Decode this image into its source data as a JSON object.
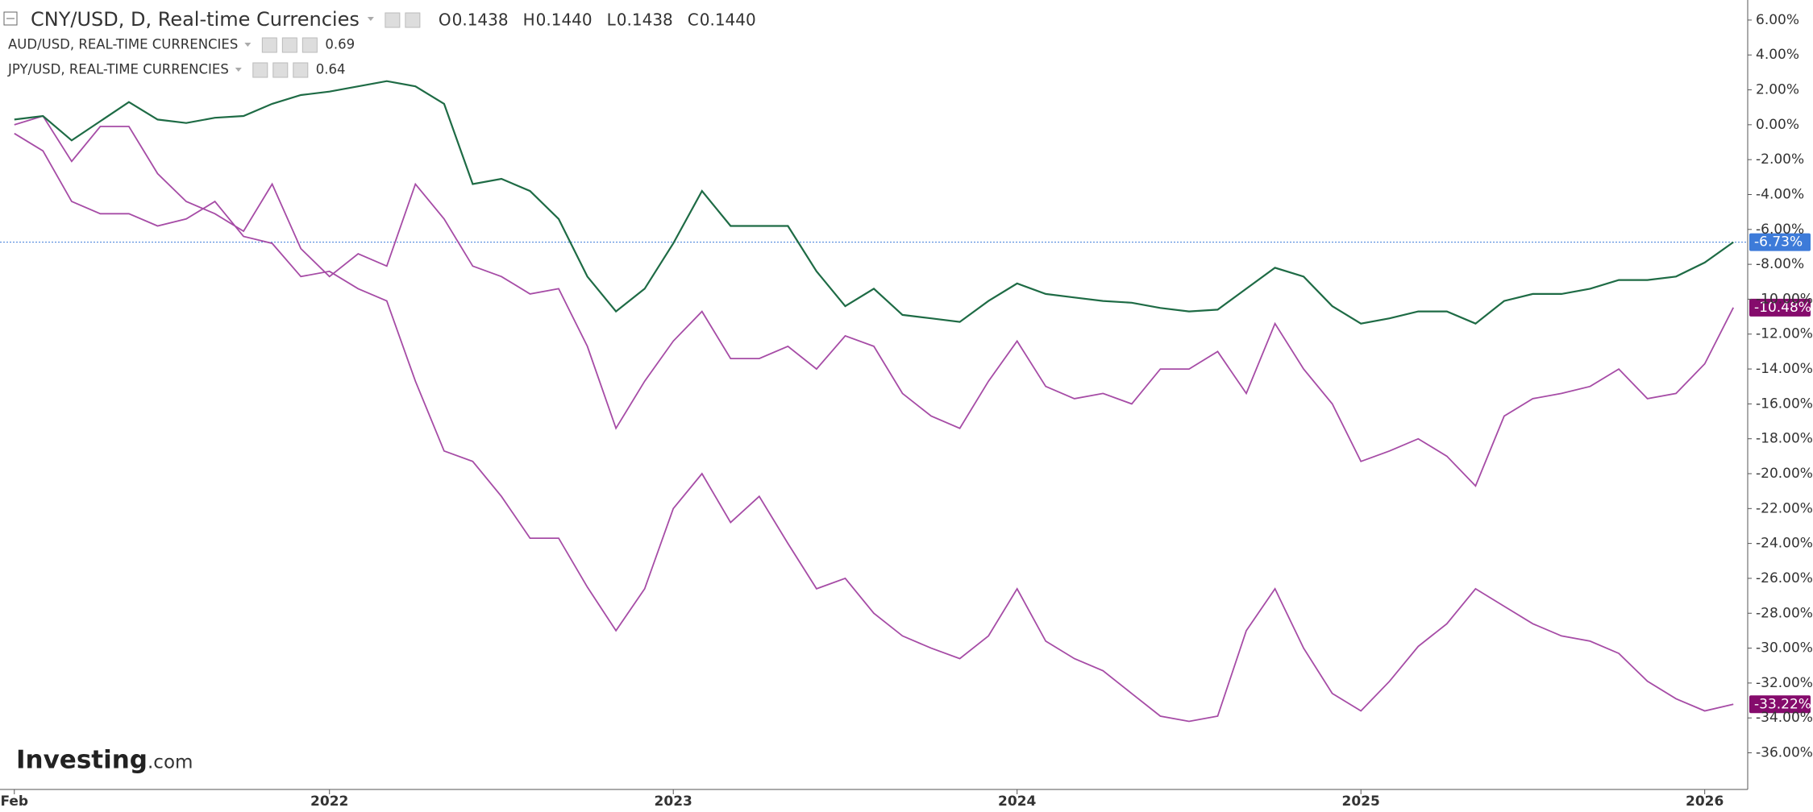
{
  "chart_data": {
    "type": "line",
    "categories": [
      "Feb",
      null,
      null,
      null,
      null,
      null,
      null,
      null,
      null,
      null,
      null,
      "2022",
      null,
      null,
      null,
      null,
      null,
      null,
      null,
      null,
      null,
      null,
      null,
      "2023",
      null,
      null,
      null,
      null,
      null,
      null,
      null,
      null,
      null,
      null,
      null,
      "2024",
      null,
      null,
      null,
      null,
      null,
      null,
      null,
      null,
      null,
      null,
      null,
      "2025",
      null,
      null,
      null,
      null,
      null,
      null,
      null,
      null,
      null,
      null,
      null,
      "2026",
      null
    ],
    "series": [
      {
        "name": "CNY/USD, D, Real-time Currencies",
        "color": "#1e6b45",
        "values": [
          0.3,
          0.5,
          -0.9,
          0.2,
          1.3,
          0.3,
          0.1,
          0.4,
          0.5,
          1.2,
          1.7,
          1.9,
          2.2,
          2.5,
          2.2,
          1.2,
          -3.4,
          -3.1,
          -3.8,
          -5.4,
          -8.7,
          -10.7,
          -9.4,
          -6.8,
          -3.8,
          -5.8,
          -5.8,
          -5.8,
          -8.4,
          -10.4,
          -9.4,
          -10.9,
          -11.1,
          -11.3,
          -10.1,
          -9.1,
          -9.7,
          -9.9,
          -10.1,
          -10.2,
          -10.5,
          -10.7,
          -10.6,
          -9.4,
          -8.2,
          -8.7,
          -10.4,
          -11.4,
          -11.1,
          -10.7,
          -10.7,
          -11.4,
          -10.1,
          -9.7,
          -9.7,
          -9.4,
          -8.9,
          -8.9,
          -8.7,
          -7.9,
          -6.73
        ],
        "value_labels": [
          null,
          null,
          null,
          null,
          null,
          null,
          null,
          null,
          null,
          null,
          null,
          null,
          null,
          null,
          null,
          null,
          null,
          null,
          null,
          null,
          null,
          null,
          null,
          null,
          null,
          null,
          null,
          null,
          null,
          null,
          null,
          null,
          null,
          null,
          null,
          null,
          null,
          null,
          null,
          null,
          null,
          null,
          null,
          null,
          null,
          null,
          null,
          null,
          null,
          null,
          null,
          null,
          null,
          null,
          null,
          null,
          null,
          null,
          null,
          null,
          "-6.73%"
        ],
        "label_color": "#3d7bd9"
      },
      {
        "name": "AUD/USD, REAL-TIME CURRENCIES",
        "color": "#a64ca6",
        "values": [
          0,
          0.5,
          -2.1,
          -0.1,
          -0.1,
          -2.8,
          -4.4,
          -5.1,
          -6.1,
          -3.4,
          -7.1,
          -8.7,
          -7.4,
          -8.1,
          -3.4,
          -5.4,
          -8.1,
          -8.7,
          -9.7,
          -9.4,
          -12.7,
          -17.4,
          -14.7,
          -12.4,
          -10.7,
          -13.4,
          -13.4,
          -12.7,
          -14.0,
          -12.1,
          -12.7,
          -15.4,
          -16.7,
          -17.4,
          -14.7,
          -12.4,
          -15.0,
          -15.7,
          -15.4,
          -16.0,
          -14.0,
          -14.0,
          -13.0,
          -15.4,
          -11.4,
          -14.0,
          -16.0,
          -19.3,
          -18.7,
          -18.0,
          -19.0,
          -20.7,
          -16.7,
          -15.7,
          -15.4,
          -15.0,
          -14.0,
          -15.7,
          -15.4,
          -13.7,
          -10.48
        ],
        "value_labels": [
          null,
          null,
          null,
          null,
          null,
          null,
          null,
          null,
          null,
          null,
          null,
          null,
          null,
          null,
          null,
          null,
          null,
          null,
          null,
          null,
          null,
          null,
          null,
          null,
          null,
          null,
          null,
          null,
          null,
          null,
          null,
          null,
          null,
          null,
          null,
          null,
          null,
          null,
          null,
          null,
          null,
          null,
          null,
          null,
          null,
          null,
          null,
          null,
          null,
          null,
          null,
          null,
          null,
          null,
          null,
          null,
          null,
          null,
          null,
          null,
          "-10.48%"
        ],
        "label_color": "#850b6c",
        "last": "0.69"
      },
      {
        "name": "JPY/USD, REAL-TIME CURRENCIES",
        "color": "#a64ca6",
        "values": [
          -0.5,
          -1.5,
          -4.4,
          -5.1,
          -5.1,
          -5.8,
          -5.4,
          -4.4,
          -6.4,
          -6.8,
          -8.7,
          -8.4,
          -9.4,
          -10.1,
          -14.7,
          -18.7,
          -19.3,
          -21.3,
          -23.7,
          -23.7,
          -26.5,
          -29.0,
          -26.6,
          -22.0,
          -20.0,
          -22.8,
          -21.3,
          -24.0,
          -26.6,
          -26.0,
          -28.0,
          -29.3,
          -30.0,
          -30.6,
          -29.3,
          -26.6,
          -29.6,
          -30.6,
          -31.3,
          -32.6,
          -33.9,
          -34.2,
          -33.9,
          -29.0,
          -26.6,
          -30.0,
          -32.6,
          -33.6,
          -31.9,
          -29.9,
          -28.6,
          -26.6,
          -27.6,
          -28.6,
          -29.3,
          -29.6,
          -30.3,
          -31.9,
          -32.9,
          -33.6,
          -33.22
        ],
        "value_labels": [
          null,
          null,
          null,
          null,
          null,
          null,
          null,
          null,
          null,
          null,
          null,
          null,
          null,
          null,
          null,
          null,
          null,
          null,
          null,
          null,
          null,
          null,
          null,
          null,
          null,
          null,
          null,
          null,
          null,
          null,
          null,
          null,
          null,
          null,
          null,
          null,
          null,
          null,
          null,
          null,
          null,
          null,
          null,
          null,
          null,
          null,
          null,
          null,
          null,
          null,
          null,
          null,
          null,
          null,
          null,
          null,
          null,
          null,
          null,
          null,
          "-33.22%"
        ],
        "label_color": "#850b6c",
        "last": "0.64"
      }
    ],
    "ohlc": [
      {
        "label": "O",
        "value": "0.1438"
      },
      {
        "label": "H",
        "value": "0.1440"
      },
      {
        "label": "L",
        "value": "0.1438"
      },
      {
        "label": "C",
        "value": "0.1440"
      }
    ],
    "ylim": [
      -38.1,
      7.15
    ],
    "yticks": [
      {
        "value": 6,
        "label": "6.00%"
      },
      {
        "value": 4,
        "label": "4.00%"
      },
      {
        "value": 2,
        "label": "2.00%"
      },
      {
        "value": 0,
        "label": "0.00%"
      },
      {
        "value": -2,
        "label": "-2.00%"
      },
      {
        "value": -4,
        "label": "-4.00%"
      },
      {
        "value": -6,
        "label": "-6.00%"
      },
      {
        "value": -8,
        "label": "-8.00%"
      },
      {
        "value": -10,
        "label": "-10.00%"
      },
      {
        "value": -12,
        "label": "-12.00%"
      },
      {
        "value": -14,
        "label": "-14.00%"
      },
      {
        "value": -16,
        "label": "-16.00%"
      },
      {
        "value": -18,
        "label": "-18.00%"
      },
      {
        "value": -20,
        "label": "-20.00%"
      },
      {
        "value": -22,
        "label": "-22.00%"
      },
      {
        "value": -24,
        "label": "-24.00%"
      },
      {
        "value": -26,
        "label": "-26.00%"
      },
      {
        "value": -28,
        "label": "-28.00%"
      },
      {
        "value": -30,
        "label": "-30.00%"
      },
      {
        "value": -32,
        "label": "-32.00%"
      },
      {
        "value": -34,
        "label": "-34.00%"
      },
      {
        "value": -36,
        "label": "-36.00%"
      }
    ],
    "logo": {
      "brand": "Investing",
      "suffix": ".com"
    }
  }
}
